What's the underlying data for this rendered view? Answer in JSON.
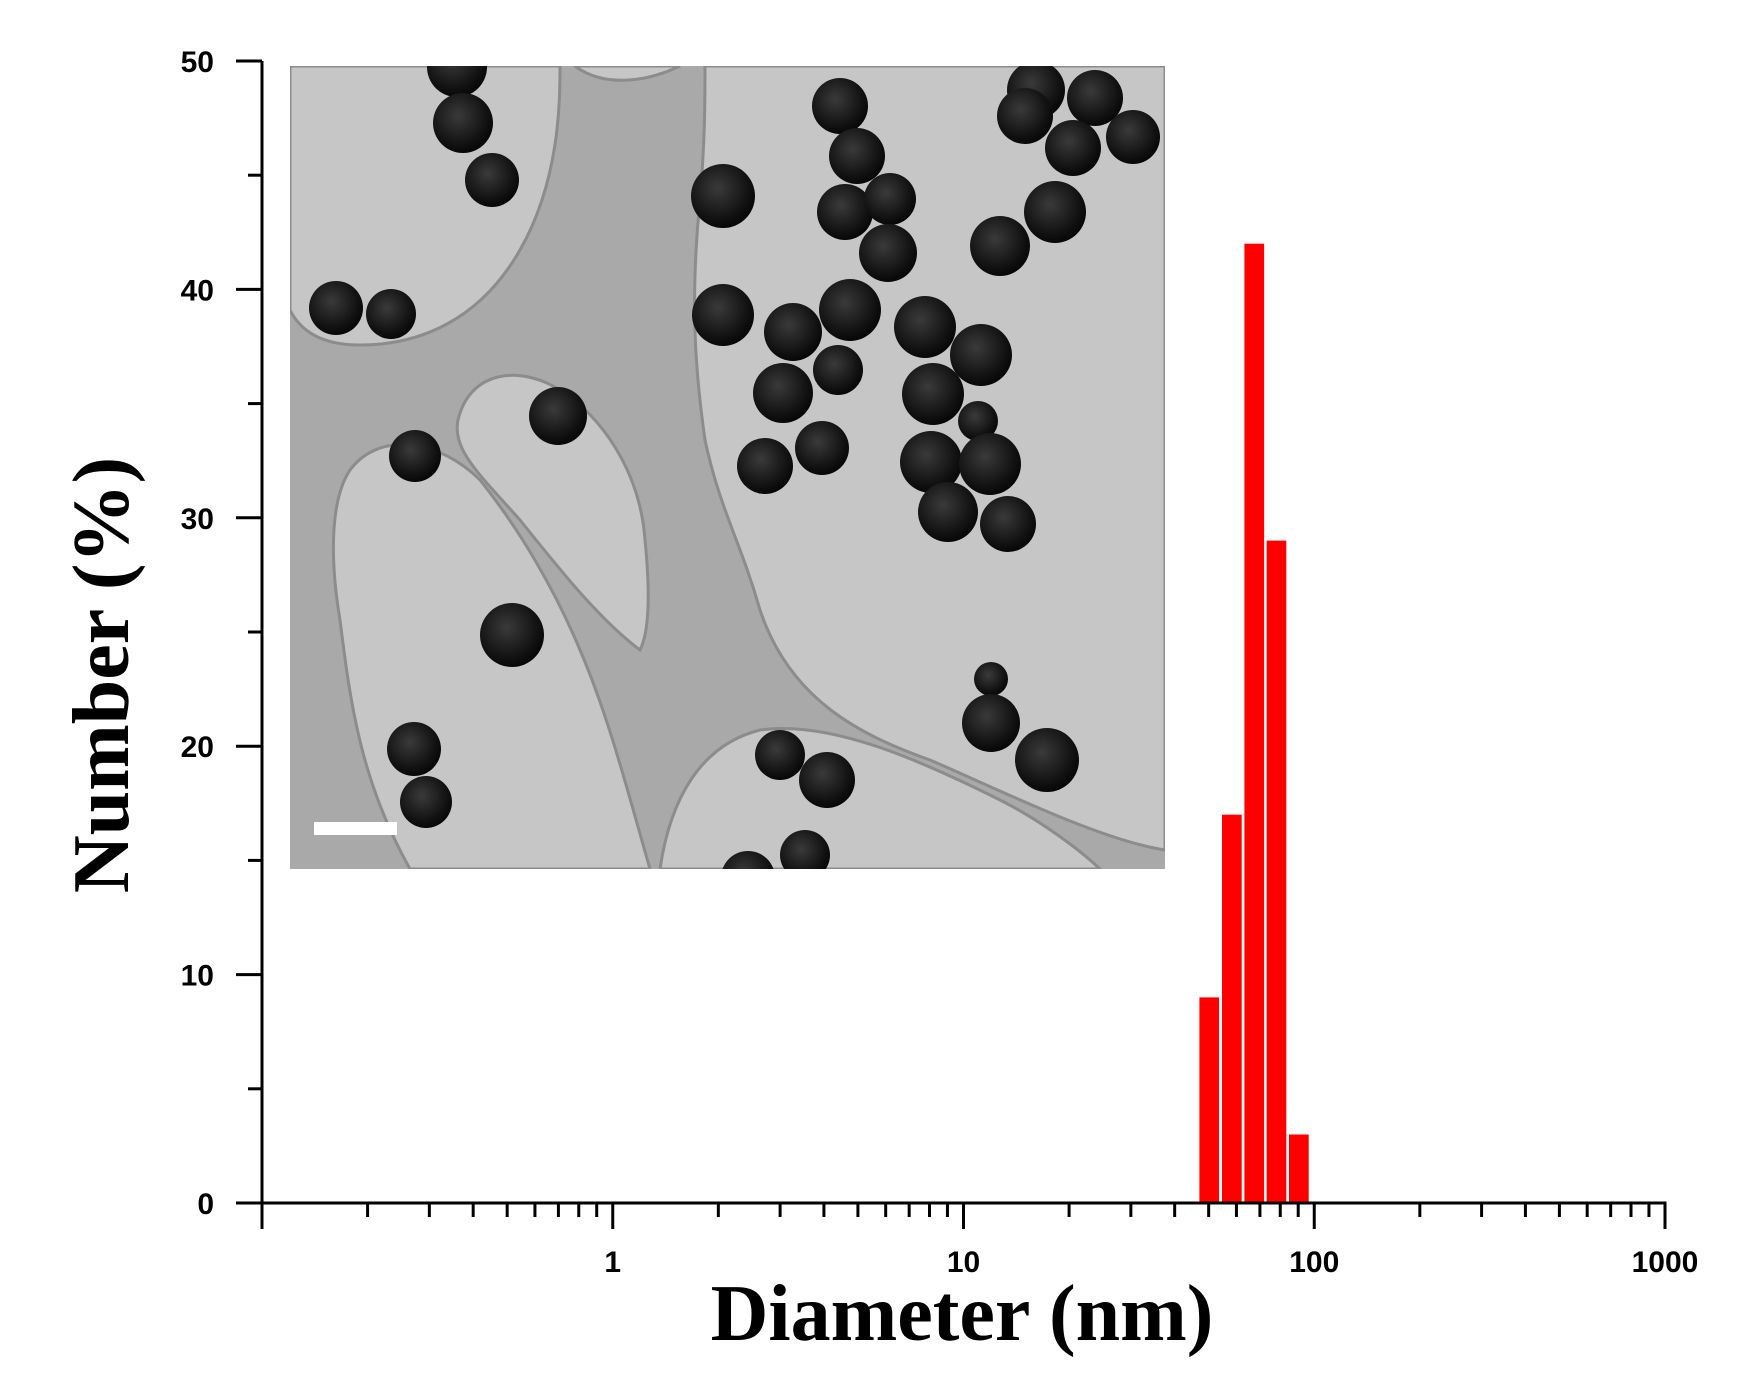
{
  "chart_data": {
    "type": "bar",
    "xlabel": "Diameter (nm)",
    "ylabel": "Number (%)",
    "x_scale": "log",
    "xlim": [
      0.1,
      1000
    ],
    "ylim": [
      0,
      50
    ],
    "x_ticks": [
      {
        "value": 1,
        "label": "1"
      },
      {
        "value": 10,
        "label": "10"
      },
      {
        "value": 100,
        "label": "100"
      },
      {
        "value": 1000,
        "label": "1000"
      }
    ],
    "y_ticks": [
      {
        "value": 0,
        "label": "0"
      },
      {
        "value": 10,
        "label": "10"
      },
      {
        "value": 20,
        "label": "20"
      },
      {
        "value": 30,
        "label": "30"
      },
      {
        "value": 40,
        "label": "40"
      },
      {
        "value": 50,
        "label": "50"
      }
    ],
    "bars": [
      {
        "x": 50.7,
        "value": 9
      },
      {
        "x": 58.8,
        "value": 17
      },
      {
        "x": 68.1,
        "value": 42
      },
      {
        "x": 78.8,
        "value": 29
      },
      {
        "x": 91.3,
        "value": 3
      }
    ],
    "bar_color": "#ff0000",
    "grid": false,
    "inset": {
      "kind": "TEM micrograph",
      "description": "dark spherical nanoparticles on a lacey carbon film with a white scale bar"
    }
  }
}
